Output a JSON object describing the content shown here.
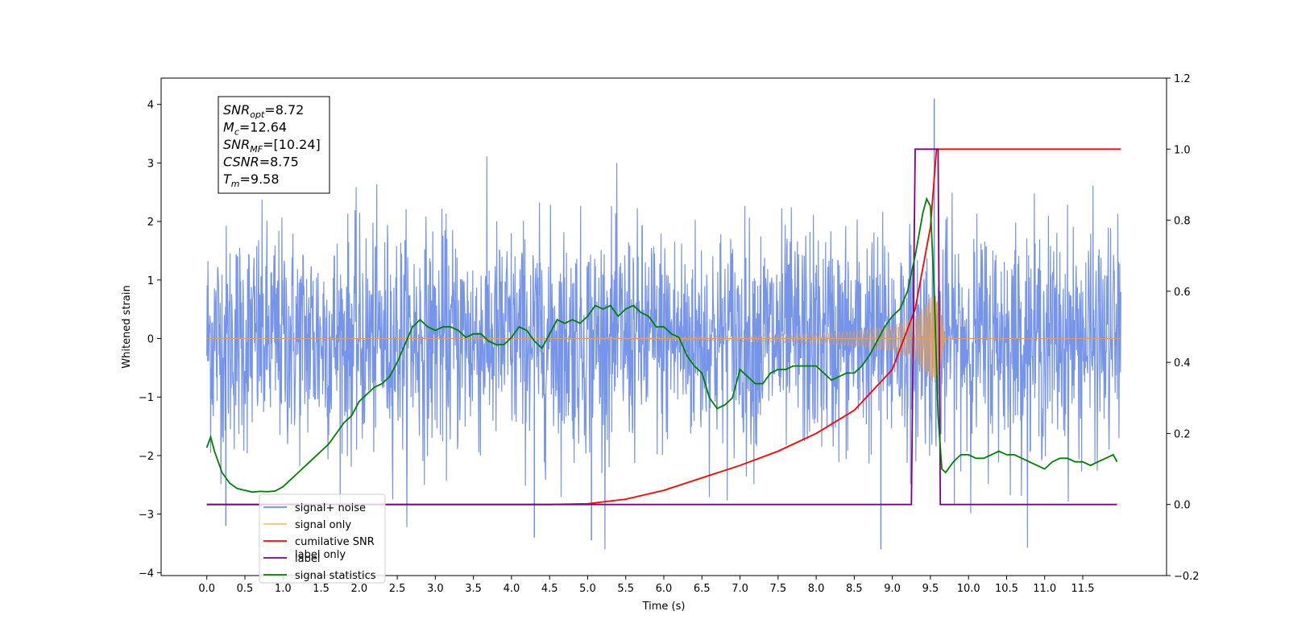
{
  "chart_data": {
    "type": "line",
    "title": "",
    "xlabel": "Time (s)",
    "ylabel": "Whitened strain",
    "y2label": "",
    "xlim": [
      -0.6,
      12.6
    ],
    "ylim": [
      -4.05,
      4.45
    ],
    "y2lim": [
      -0.2,
      1.2
    ],
    "x_ticks": [
      0.0,
      0.5,
      1.0,
      1.5,
      2.0,
      2.5,
      3.0,
      3.5,
      4.0,
      4.5,
      5.0,
      5.5,
      6.0,
      6.5,
      7.0,
      7.5,
      8.0,
      8.5,
      9.0,
      9.5,
      10.0,
      10.5,
      11.0,
      11.5
    ],
    "x_tick_labels": [
      "0.0",
      "0.5",
      "1.0",
      "1.5",
      "2.0",
      "2.5",
      "3.0",
      "3.5",
      "4.0",
      "4.5",
      "5.0",
      "5.5",
      "6.0",
      "6.5",
      "7.0",
      "7.5",
      "8.0",
      "8.5",
      "9.0",
      "9.5",
      "10.0",
      "10.5",
      "11.0",
      "11.5"
    ],
    "y_ticks": [
      -4,
      -3,
      -2,
      -1,
      0,
      1,
      2,
      3,
      4
    ],
    "y_tick_labels": [
      "−4",
      "−3",
      "−2",
      "−1",
      "0",
      "1",
      "2",
      "3",
      "4"
    ],
    "y2_ticks": [
      -0.2,
      0.0,
      0.2,
      0.4,
      0.6,
      0.8,
      1.0,
      1.2
    ],
    "y2_tick_labels": [
      "−0.2",
      "0.0",
      "0.2",
      "0.4",
      "0.6",
      "0.8",
      "1.0",
      "1.2"
    ],
    "grid": false,
    "legend_position": "bottom-left",
    "legend": [
      {
        "label": "signal+ noise",
        "color": "#6f8ee8"
      },
      {
        "label": "signal only",
        "color": "#f5c26b"
      },
      {
        "label": "cumilative SNR",
        "color": "#ff0000"
      },
      {
        "label": "label",
        "color": "#800080"
      },
      {
        "label": "signal statistics",
        "color": "#008000"
      }
    ],
    "hidden_legend_text": "label only",
    "info_box": [
      {
        "base": "SNR",
        "sub": "opt",
        "value": "=8.72"
      },
      {
        "base": "M",
        "sub": "c",
        "value": "=12.64"
      },
      {
        "base": "SNR",
        "sub": "MF",
        "value": "=[10.24]"
      },
      {
        "base": "CSNR",
        "sub": "",
        "value": "=8.75"
      },
      {
        "base": "T",
        "sub": "m",
        "value": "=9.58"
      }
    ],
    "series": [
      {
        "name": "signal+ noise",
        "axis": "left",
        "color": "#6f8ee8",
        "x_start": 0.0,
        "x_end": 12.0,
        "typical_range": [
          -1.8,
          1.8
        ],
        "extreme_max": 4.1,
        "extreme_min": -3.6
      },
      {
        "name": "signal only",
        "axis": "left",
        "color": "#d9a066",
        "x_start": 0.0,
        "x_end": 12.0,
        "merger_time": 9.58,
        "envelope": {
          "x": [
            0.0,
            5.0,
            6.0,
            7.0,
            8.0,
            8.5,
            9.0,
            9.3,
            9.5,
            9.58,
            9.7,
            12.0
          ],
          "amp": [
            0.0,
            0.01,
            0.03,
            0.05,
            0.09,
            0.13,
            0.22,
            0.37,
            0.7,
            0.85,
            0.0,
            0.0
          ]
        }
      },
      {
        "name": "cumilative SNR",
        "axis": "right",
        "color": "#ff0000",
        "x": [
          0.0,
          4.5,
          5.0,
          5.5,
          6.0,
          6.5,
          7.0,
          7.5,
          8.0,
          8.5,
          9.0,
          9.3,
          9.5,
          9.58,
          9.6,
          12.0
        ],
        "values": [
          0.0,
          0.0,
          0.002,
          0.015,
          0.04,
          0.075,
          0.11,
          0.15,
          0.2,
          0.265,
          0.38,
          0.55,
          0.78,
          1.0,
          1.0,
          1.0
        ]
      },
      {
        "name": "label",
        "axis": "right",
        "color": "#800080",
        "x": [
          0.0,
          9.25,
          9.3,
          9.6,
          9.63,
          11.95
        ],
        "values": [
          0.0,
          0.0,
          1.0,
          1.0,
          0.0,
          0.0
        ]
      },
      {
        "name": "signal statistics",
        "axis": "right",
        "color": "#008000",
        "x": [
          0.0,
          0.05,
          0.1,
          0.15,
          0.2,
          0.3,
          0.4,
          0.5,
          0.6,
          0.7,
          0.8,
          0.9,
          1.0,
          1.1,
          1.2,
          1.3,
          1.4,
          1.5,
          1.6,
          1.7,
          1.8,
          1.9,
          2.0,
          2.1,
          2.2,
          2.3,
          2.4,
          2.5,
          2.6,
          2.7,
          2.8,
          2.9,
          3.0,
          3.1,
          3.2,
          3.3,
          3.4,
          3.5,
          3.6,
          3.7,
          3.8,
          3.9,
          4.0,
          4.1,
          4.2,
          4.3,
          4.4,
          4.5,
          4.6,
          4.7,
          4.8,
          4.9,
          5.0,
          5.1,
          5.2,
          5.3,
          5.4,
          5.5,
          5.6,
          5.7,
          5.8,
          5.9,
          6.0,
          6.1,
          6.2,
          6.3,
          6.4,
          6.5,
          6.6,
          6.7,
          6.8,
          6.9,
          7.0,
          7.1,
          7.2,
          7.3,
          7.4,
          7.5,
          7.6,
          7.7,
          7.8,
          7.9,
          8.0,
          8.1,
          8.2,
          8.3,
          8.4,
          8.5,
          8.6,
          8.7,
          8.8,
          8.9,
          9.0,
          9.1,
          9.2,
          9.3,
          9.4,
          9.45,
          9.5,
          9.55,
          9.6,
          9.65,
          9.7,
          9.8,
          9.9,
          10.0,
          10.1,
          10.2,
          10.3,
          10.4,
          10.5,
          10.6,
          10.7,
          10.8,
          10.9,
          11.0,
          11.1,
          11.2,
          11.3,
          11.4,
          11.5,
          11.6,
          11.7,
          11.8,
          11.9,
          11.95
        ],
        "values": [
          0.16,
          0.19,
          0.15,
          0.12,
          0.09,
          0.06,
          0.045,
          0.04,
          0.035,
          0.037,
          0.036,
          0.038,
          0.05,
          0.07,
          0.09,
          0.11,
          0.13,
          0.15,
          0.17,
          0.2,
          0.23,
          0.25,
          0.29,
          0.31,
          0.33,
          0.34,
          0.36,
          0.4,
          0.45,
          0.5,
          0.52,
          0.5,
          0.49,
          0.5,
          0.5,
          0.49,
          0.47,
          0.48,
          0.48,
          0.46,
          0.45,
          0.45,
          0.47,
          0.5,
          0.49,
          0.46,
          0.44,
          0.48,
          0.52,
          0.51,
          0.52,
          0.51,
          0.53,
          0.56,
          0.55,
          0.56,
          0.53,
          0.55,
          0.56,
          0.54,
          0.53,
          0.5,
          0.5,
          0.48,
          0.47,
          0.42,
          0.39,
          0.37,
          0.3,
          0.27,
          0.28,
          0.3,
          0.38,
          0.36,
          0.34,
          0.34,
          0.37,
          0.38,
          0.38,
          0.39,
          0.39,
          0.39,
          0.39,
          0.37,
          0.35,
          0.36,
          0.37,
          0.37,
          0.39,
          0.42,
          0.46,
          0.5,
          0.53,
          0.55,
          0.6,
          0.7,
          0.82,
          0.86,
          0.84,
          0.6,
          0.25,
          0.1,
          0.09,
          0.12,
          0.14,
          0.14,
          0.13,
          0.13,
          0.14,
          0.15,
          0.14,
          0.14,
          0.13,
          0.12,
          0.11,
          0.1,
          0.12,
          0.13,
          0.13,
          0.12,
          0.12,
          0.11,
          0.12,
          0.13,
          0.14,
          0.12
        ]
      }
    ]
  }
}
